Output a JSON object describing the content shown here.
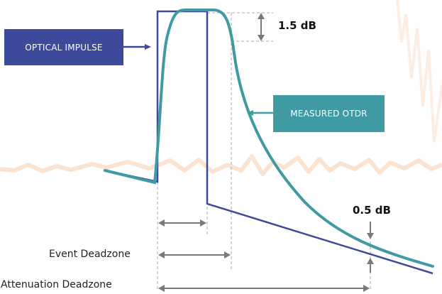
{
  "labels": {
    "optical_impulse": "OPTICAL IMPULSE",
    "measured_otdr": "MEASURED OTDR",
    "peak_db": "1.5 dB",
    "tail_db": "0.5 dB",
    "event_deadzone": "Event Deadzone",
    "attenuation_deadzone": "Attenuation Deadzone"
  },
  "colors": {
    "impulse": "#3d4a9b",
    "otdr": "#3f9aa3",
    "dimension": "#7a7a7a",
    "dashed": "#a8a8a8",
    "background_noise": "#fbe3d2"
  }
}
